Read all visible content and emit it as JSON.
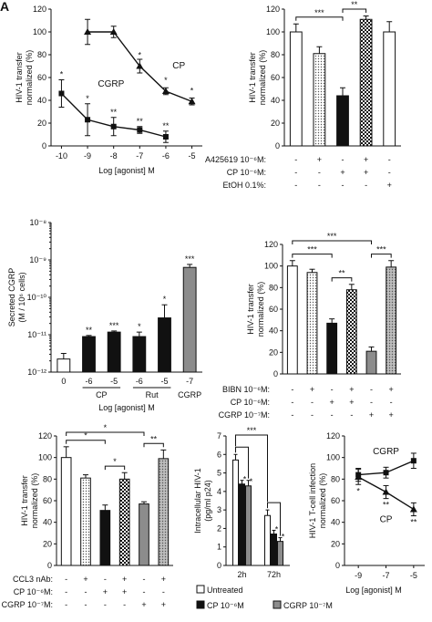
{
  "panel_letter": "A",
  "colors": {
    "white": "#ffffff",
    "dotted": "#d9d9d9",
    "black": "#111111",
    "checker": "#222222",
    "gray": "#8c8c8c",
    "axis": "#111111"
  },
  "chart_data": [
    {
      "id": "A",
      "type": "line",
      "ylabel": "HIV-1 transfer normalized (%)",
      "xlabel": "Log [agonist] M",
      "ylim": [
        0,
        120
      ],
      "yticks": [
        0,
        20,
        40,
        60,
        80,
        100,
        120
      ],
      "xticks": [
        -10,
        -9,
        -8,
        -7,
        -6,
        -5
      ],
      "series": [
        {
          "name": "CP",
          "marker": "triangle",
          "x": [
            -9,
            -8,
            -7,
            -6,
            -5
          ],
          "values": [
            100,
            100,
            70,
            48,
            39
          ],
          "err": [
            11,
            5,
            6,
            3,
            3
          ],
          "sig": [
            "",
            "",
            "*",
            "*",
            "*"
          ]
        },
        {
          "name": "CGRP",
          "marker": "square",
          "x": [
            -10,
            -9,
            -8,
            -7,
            -6
          ],
          "values": [
            46,
            23,
            17,
            14,
            8
          ],
          "err": [
            12,
            14,
            8,
            3,
            5
          ],
          "sig": [
            "*",
            "*",
            "**",
            "**",
            "**"
          ]
        }
      ]
    },
    {
      "id": "B",
      "type": "bar",
      "ylabel": "HIV-1 transfer normalized (%)",
      "ylim": [
        0,
        120
      ],
      "yticks": [
        0,
        20,
        40,
        60,
        80,
        100,
        120
      ],
      "values": [
        100,
        81,
        44,
        111,
        100
      ],
      "err": [
        7,
        6,
        7,
        3,
        9
      ],
      "fills": [
        "white",
        "dotted",
        "black",
        "checker",
        "white"
      ],
      "conditions": [
        {
          "label": "A425619 10⁻⁶M:",
          "signs": [
            "-",
            "+",
            "-",
            "+",
            "-"
          ]
        },
        {
          "label": "CP 10⁻⁶M:",
          "signs": [
            "-",
            "-",
            "+",
            "+",
            "-"
          ]
        },
        {
          "label": "EtOH 0.1%:",
          "signs": [
            "-",
            "-",
            "-",
            "-",
            "+"
          ]
        }
      ],
      "brackets": [
        {
          "from": 0,
          "to": 2,
          "sig": "***"
        },
        {
          "from": 2,
          "to": 3,
          "sig": "**"
        }
      ]
    },
    {
      "id": "C",
      "type": "bar",
      "ylabel": "Secreted CGRP (M / 10⁶ cells)",
      "xlabel": "Log [agonist] M",
      "scale": "log",
      "ylim_exp": [
        -12,
        -8
      ],
      "ytick_labels": [
        "10⁻¹²",
        "10⁻¹¹",
        "10⁻¹⁰",
        "10⁻⁹",
        "10⁻⁸"
      ],
      "categories": [
        "0",
        "-6",
        "-5",
        "-6",
        "-5",
        "-7"
      ],
      "groups": [
        {
          "label": "CP",
          "from": 1,
          "to": 2
        },
        {
          "label": "Rut",
          "from": 3,
          "to": 4
        },
        {
          "label": "CGRP",
          "from": 5,
          "to": 5
        }
      ],
      "values_log": [
        -11.65,
        -11.05,
        -10.93,
        -11.05,
        -10.55,
        -9.2
      ],
      "err_log": [
        0.15,
        0.03,
        0.03,
        0.12,
        0.35,
        0.08
      ],
      "fills": [
        "white",
        "black",
        "black",
        "black",
        "black",
        "gray"
      ],
      "sig": [
        "",
        "**",
        "***",
        "*",
        "*",
        "***"
      ]
    },
    {
      "id": "D",
      "type": "bar",
      "ylabel": "HIV-1 transfer normalized (%)",
      "ylim": [
        0,
        120
      ],
      "yticks": [
        0,
        20,
        40,
        60,
        80,
        100,
        120
      ],
      "values": [
        100,
        94,
        47,
        78,
        21,
        99
      ],
      "err": [
        5,
        3,
        4,
        5,
        4,
        6
      ],
      "fills": [
        "white",
        "dotted",
        "black",
        "checker",
        "gray",
        "dotgray"
      ],
      "conditions": [
        {
          "label": "BIBN 10⁻⁶M:",
          "signs": [
            "-",
            "+",
            "-",
            "+",
            "-",
            "+"
          ]
        },
        {
          "label": "CP 10⁻⁶M:",
          "signs": [
            "-",
            "-",
            "+",
            "+",
            "-",
            "-"
          ]
        },
        {
          "label": "CGRP 10⁻⁷M:",
          "signs": [
            "-",
            "-",
            "-",
            "-",
            "+",
            "+"
          ]
        }
      ],
      "brackets": [
        {
          "from": 0,
          "to": 2,
          "sig": "***"
        },
        {
          "from": 0,
          "to": 4,
          "sig": "***"
        },
        {
          "from": 2,
          "to": 3,
          "sig": "**"
        },
        {
          "from": 4,
          "to": 5,
          "sig": "***"
        }
      ]
    },
    {
      "id": "E",
      "type": "bar",
      "ylabel": "HIV-1 transfer normalized (%)",
      "ylim": [
        0,
        120
      ],
      "yticks": [
        0,
        20,
        40,
        60,
        80,
        100,
        120
      ],
      "values": [
        100,
        81,
        51,
        80,
        57,
        99
      ],
      "err": [
        10,
        3,
        5,
        6,
        2,
        8
      ],
      "fills": [
        "white",
        "dotted",
        "black",
        "checker",
        "gray",
        "dotgray"
      ],
      "conditions": [
        {
          "label": "CCL3 nAb:",
          "signs": [
            "-",
            "+",
            "-",
            "+",
            "-",
            "+"
          ]
        },
        {
          "label": "CP 10⁻⁶M:",
          "signs": [
            "-",
            "-",
            "+",
            "+",
            "-",
            "-"
          ]
        },
        {
          "label": "CGRP 10⁻⁷M:",
          "signs": [
            "-",
            "-",
            "-",
            "-",
            "+",
            "+"
          ]
        }
      ],
      "brackets": [
        {
          "from": 0,
          "to": 2,
          "sig": "*"
        },
        {
          "from": 0,
          "to": 4,
          "sig": "*"
        },
        {
          "from": 2,
          "to": 3,
          "sig": "*"
        },
        {
          "from": 4,
          "to": 5,
          "sig": "**"
        }
      ]
    },
    {
      "id": "F",
      "type": "bar",
      "ylabel": "Intracellular HIV-1 (pg/ml p24)",
      "ylim": [
        0,
        7
      ],
      "yticks": [
        0,
        1,
        2,
        3,
        4,
        5,
        6,
        7
      ],
      "categories": [
        "2h",
        "72h"
      ],
      "series": [
        {
          "name": "Untreated",
          "fill": "white",
          "values": [
            5.7,
            2.7
          ],
          "err": [
            0.3,
            0.3
          ]
        },
        {
          "name": "CP 10⁻⁶M",
          "fill": "black",
          "values": [
            4.4,
            1.7
          ],
          "err": [
            0.2,
            0.2
          ]
        },
        {
          "name": "CGRP 10⁻⁷M",
          "fill": "gray",
          "values": [
            4.3,
            1.3
          ],
          "err": [
            0.3,
            0.2
          ]
        }
      ],
      "sig": [
        [
          "",
          "*",
          "*"
        ],
        [
          "",
          "*",
          "*"
        ]
      ],
      "top_sig": "***",
      "legend": [
        {
          "label": "Untreated",
          "fill": "white"
        },
        {
          "label": "CP 10⁻⁶M",
          "fill": "black"
        },
        {
          "label": "CGRP 10⁻⁷M",
          "fill": "gray"
        }
      ]
    },
    {
      "id": "G",
      "type": "line",
      "ylabel": "HIV-1 T-cell infection normalized (%)",
      "xlabel": "Log [agonist] M",
      "ylim": [
        0,
        120
      ],
      "yticks": [
        0,
        20,
        40,
        60,
        80,
        100,
        120
      ],
      "xticks": [
        -9,
        -7,
        -5
      ],
      "series": [
        {
          "name": "CGRP",
          "marker": "square",
          "x": [
            -9,
            -7,
            -5
          ],
          "values": [
            84,
            86,
            97
          ],
          "err": [
            6,
            5,
            7
          ],
          "sig": [
            "",
            "",
            ""
          ]
        },
        {
          "name": "CP",
          "marker": "triangle",
          "x": [
            -9,
            -7,
            -5
          ],
          "values": [
            82,
            68,
            52
          ],
          "err": [
            7,
            6,
            6
          ],
          "sig": [
            "*",
            "**",
            "**"
          ]
        }
      ]
    }
  ]
}
